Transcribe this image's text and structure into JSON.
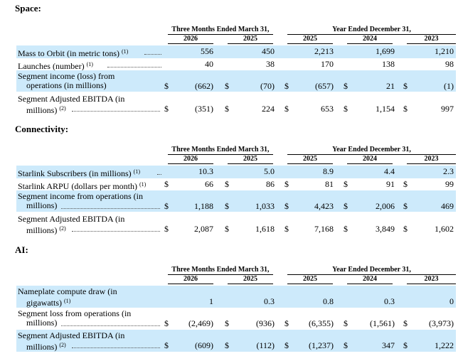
{
  "headers": {
    "group1": "Three Months Ended March 31,",
    "group2": "Year Ended December 31,",
    "years": [
      "2026",
      "2025",
      "2025",
      "2024",
      "2023"
    ]
  },
  "sections": {
    "space": {
      "title": "Space:",
      "rows": [
        {
          "label": "Mass to Orbit (in metric tons)",
          "sup": "(1)",
          "dollar": false,
          "values": [
            "556",
            "450",
            "2,213",
            "1,699",
            "1,210"
          ]
        },
        {
          "label": "Launches (number)",
          "sup": "(1)",
          "dollar": false,
          "values": [
            "40",
            "38",
            "170",
            "138",
            "98"
          ]
        },
        {
          "label_line1": "Segment income (loss) from",
          "label_line2": "operations (in millions)",
          "dollar": true,
          "values": [
            "(662)",
            "(70)",
            "(657)",
            "21",
            "(1)"
          ]
        },
        {
          "label_line1": "Segment Adjusted EBITDA (in",
          "label_line2": "millions)",
          "sup": "(2)",
          "dollar": true,
          "values": [
            "(351)",
            "224",
            "653",
            "1,154",
            "997"
          ]
        }
      ]
    },
    "connectivity": {
      "title": "Connectivity:",
      "rows": [
        {
          "label": "Starlink Subscribers (in millions)",
          "sup": "(1)",
          "dollar": false,
          "values": [
            "10.3",
            "5.0",
            "8.9",
            "4.4",
            "2.3"
          ]
        },
        {
          "label": "Starlink ARPU (dollars per month)",
          "sup": "(1)",
          "dollar": true,
          "values": [
            "66",
            "86",
            "81",
            "91",
            "99"
          ]
        },
        {
          "label_line1": "Segment income from operations (in",
          "label_line2": "millions)",
          "dollar": true,
          "values": [
            "1,188",
            "1,033",
            "4,423",
            "2,006",
            "469"
          ]
        },
        {
          "label_line1": "Segment Adjusted EBITDA (in",
          "label_line2": "millions)",
          "sup": "(2)",
          "dollar": true,
          "values": [
            "2,087",
            "1,618",
            "7,168",
            "3,849",
            "1,602"
          ]
        }
      ]
    },
    "ai": {
      "title": "AI:",
      "rows": [
        {
          "label_line1": "Nameplate compute draw (in",
          "label_line2": "gigawatts)",
          "sup": "(1)",
          "dollar": false,
          "values": [
            "1",
            "0.3",
            "0.8",
            "0.3",
            "0"
          ]
        },
        {
          "label_line1": "Segment loss from operations (in",
          "label_line2": "millions)",
          "dollar": true,
          "values": [
            "(2,469)",
            "(936)",
            "(6,355)",
            "(1,561)",
            "(3,973)"
          ]
        },
        {
          "label_line1": "Segment Adjusted EBITDA (in",
          "label_line2": "millions)",
          "sup": "(2)",
          "dollar": true,
          "values": [
            "(609)",
            "(112)",
            "(1,237)",
            "347",
            "1,222"
          ]
        }
      ]
    }
  },
  "dollar_sign": "$"
}
